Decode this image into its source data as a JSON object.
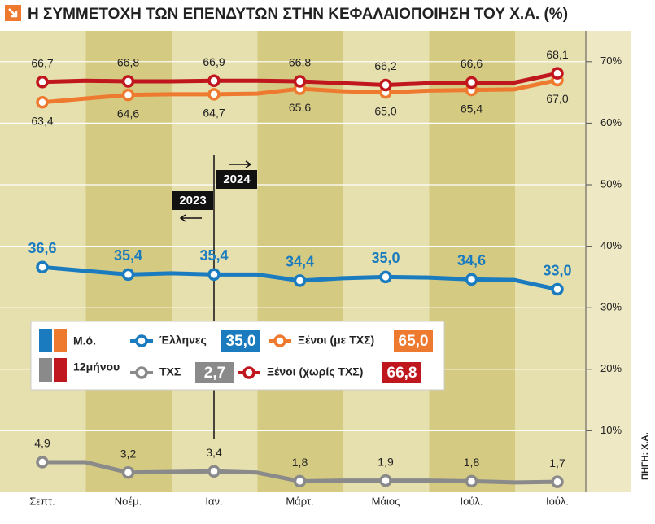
{
  "chart_data": {
    "type": "line",
    "title": "Η ΣΥΜΜΕΤΟΧΗ ΤΩΝ ΕΠΕΝΔΥΤΩΝ ΣΤΗΝ ΚΕΦΑΛΑΙΟΠΟΙΗΣΗ ΤΟΥ Χ.Α. (%)",
    "source": "ΠΗΓΗ: Χ.Α.",
    "categories": [
      "Σεπτ.",
      null,
      "Νοέμ.",
      null,
      "Ιαν.",
      null,
      "Μάρτ.",
      null,
      "Μάιος",
      null,
      "Ιούλ.",
      null,
      "Ιούλ."
    ],
    "annotations": [
      "2024",
      "2023"
    ],
    "legend_labels": [
      "Μ.ό.",
      "12μήνου"
    ],
    "series": [
      {
        "name": "Έλληνες",
        "color": "#1a7bbf",
        "average": 35.0,
        "average_label": "35,0",
        "label_pos": "above",
        "values": [
          36.6,
          36.0,
          35.4,
          35.6,
          35.4,
          35.4,
          34.4,
          34.8,
          35.0,
          34.9,
          34.6,
          34.5,
          33.0
        ],
        "value_labels": [
          "36,6",
          null,
          "35,4",
          null,
          "35,4",
          null,
          "34,4",
          null,
          "35,0",
          null,
          "34,6",
          null,
          "33,0"
        ]
      },
      {
        "name": "Ξένοι (με ΤΧΣ)",
        "color": "#ee7a30",
        "average": 65.0,
        "average_label": "65,0",
        "label_pos": "below",
        "values": [
          63.4,
          64.0,
          64.6,
          64.7,
          64.7,
          64.8,
          65.6,
          65.2,
          65.0,
          65.3,
          65.4,
          65.5,
          67.0
        ],
        "value_labels": [
          "63,4",
          null,
          "64,6",
          null,
          "64,7",
          null,
          "65,6",
          null,
          "65,0",
          null,
          "65,4",
          null,
          "67,0"
        ]
      },
      {
        "name": "ΤΧΣ",
        "color": "#8a8a8a",
        "average": 2.7,
        "average_label": "2,7",
        "label_pos": "above",
        "values": [
          4.9,
          4.9,
          3.2,
          3.3,
          3.4,
          3.2,
          1.8,
          1.9,
          1.9,
          1.9,
          1.8,
          1.6,
          1.7
        ],
        "value_labels": [
          "4,9",
          null,
          "3,2",
          null,
          "3,4",
          null,
          "1,8",
          null,
          "1,9",
          null,
          "1,8",
          null,
          "1,7"
        ]
      },
      {
        "name": "Ξένοι (χωρίς ΤΧΣ)",
        "color": "#c0161e",
        "average": 66.8,
        "average_label": "66,8",
        "label_pos": "above",
        "values": [
          66.7,
          66.9,
          66.8,
          66.8,
          66.9,
          66.9,
          66.8,
          66.5,
          66.2,
          66.5,
          66.6,
          66.6,
          68.1
        ],
        "value_labels": [
          "66,7",
          null,
          "66,8",
          null,
          "66,9",
          null,
          "66,8",
          null,
          "66,2",
          null,
          "66,6",
          null,
          "68,1"
        ]
      }
    ],
    "ylim": [
      0,
      75
    ],
    "yticks": [
      {
        "value": 10,
        "label": "10%"
      },
      {
        "value": 20,
        "label": "20%"
      },
      {
        "value": 30,
        "label": "30%"
      },
      {
        "value": 40,
        "label": "40%"
      },
      {
        "value": 50,
        "label": "50%"
      },
      {
        "value": 60,
        "label": "60%"
      },
      {
        "value": 70,
        "label": "70%"
      }
    ],
    "grid": true
  }
}
